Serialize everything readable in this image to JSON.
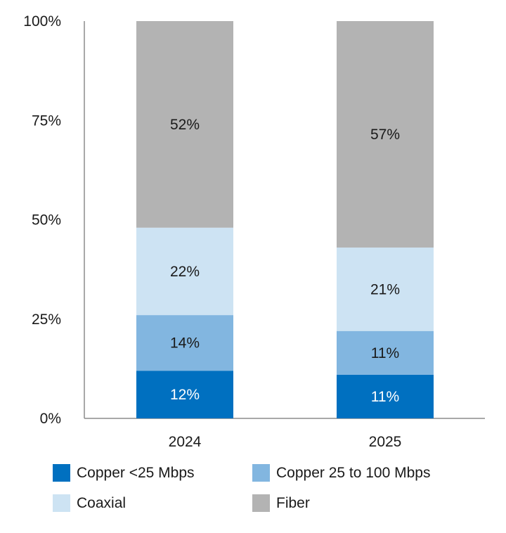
{
  "chart_data": {
    "type": "bar",
    "stacked": true,
    "categories": [
      "2024",
      "2025"
    ],
    "series": [
      {
        "name": "Copper <25 Mbps",
        "values": [
          12,
          11
        ],
        "labels": [
          "12%",
          "11%"
        ],
        "color": "#0070C0",
        "label_color": "#ffffff"
      },
      {
        "name": "Copper 25 to 100 Mbps",
        "values": [
          14,
          11
        ],
        "labels": [
          "14%",
          "11%"
        ],
        "color": "#82B6E0",
        "label_color": "#1a1a1a"
      },
      {
        "name": "Coaxial",
        "values": [
          22,
          21
        ],
        "labels": [
          "22%",
          "21%"
        ],
        "color": "#CDE3F3",
        "label_color": "#1a1a1a"
      },
      {
        "name": "Fiber",
        "values": [
          52,
          57
        ],
        "labels": [
          "52%",
          "57%"
        ],
        "color": "#B3B3B3",
        "label_color": "#1a1a1a"
      }
    ],
    "ylim": [
      0,
      100
    ],
    "yticks": [
      0,
      25,
      50,
      75,
      100
    ],
    "ytick_labels": [
      "0%",
      "25%",
      "50%",
      "75%",
      "100%"
    ],
    "grid": false,
    "legend_position": "bottom",
    "xlabel": "",
    "ylabel": ""
  }
}
